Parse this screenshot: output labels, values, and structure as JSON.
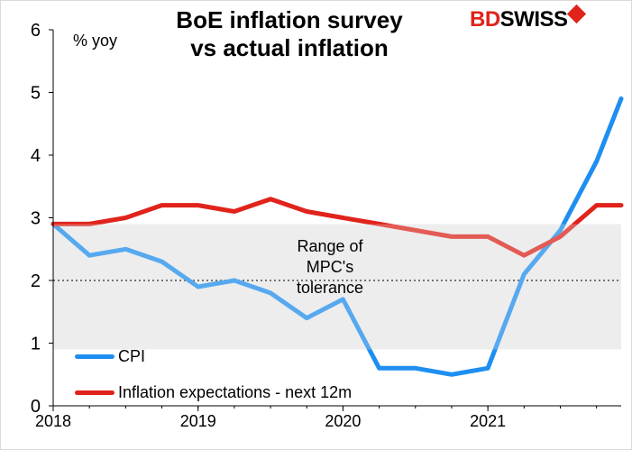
{
  "chart_data": {
    "type": "line",
    "title": "BoE inflation survey vs actual inflation",
    "title_lines": [
      "BoE inflation survey",
      "vs actual inflation"
    ],
    "ylabel": "% yoy",
    "ylim": [
      0,
      6
    ],
    "yticks": [
      0,
      1,
      2,
      3,
      4,
      5,
      6
    ],
    "xlim": [
      2018.0,
      2021.92
    ],
    "xticks": [
      2018,
      2019,
      2020,
      2021
    ],
    "tolerance_band": [
      0.9,
      2.9
    ],
    "target_line": 2,
    "annotation": [
      "Range of",
      "MPC's",
      "tolerance"
    ],
    "legend_position": "bottom-left",
    "series": [
      {
        "name": "CPI",
        "color": "#1e8ff0",
        "x": [
          2018.0,
          2018.25,
          2018.5,
          2018.75,
          2019.0,
          2019.25,
          2019.5,
          2019.75,
          2020.0,
          2020.25,
          2020.5,
          2020.75,
          2021.0,
          2021.25,
          2021.5,
          2021.75,
          2021.92
        ],
        "y": [
          2.9,
          2.4,
          2.5,
          2.3,
          1.9,
          2.0,
          1.8,
          1.4,
          1.7,
          0.6,
          0.6,
          0.5,
          0.6,
          2.1,
          2.8,
          3.9,
          4.9
        ]
      },
      {
        "name": "Inflation expectations - next 12m",
        "color": "#e0231b",
        "x": [
          2018.0,
          2018.25,
          2018.5,
          2018.75,
          2019.0,
          2019.25,
          2019.5,
          2019.75,
          2020.0,
          2020.25,
          2020.5,
          2020.75,
          2021.0,
          2021.25,
          2021.5,
          2021.75,
          2021.92
        ],
        "y": [
          2.9,
          2.9,
          3.0,
          3.2,
          3.2,
          3.1,
          3.3,
          3.1,
          3.0,
          2.9,
          2.8,
          2.7,
          2.7,
          2.4,
          2.7,
          3.2,
          3.2
        ]
      }
    ]
  },
  "brand": {
    "part1": "BD",
    "part2": "SWISS",
    "arrow": "↗"
  }
}
